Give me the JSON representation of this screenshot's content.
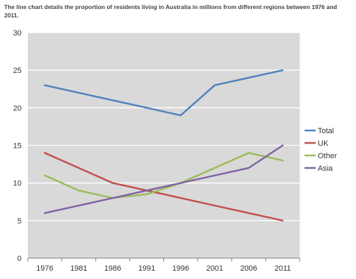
{
  "chart_data": {
    "type": "line",
    "title": "The line chart details the proportion of residents living in Australia in millions from different regions between 1976 and 2011.",
    "xlabel": "",
    "ylabel": "",
    "categories": [
      "1976",
      "1981",
      "1986",
      "1991",
      "1996",
      "2001",
      "2006",
      "2011"
    ],
    "ylim": [
      0,
      30
    ],
    "yticks": [
      0,
      5,
      10,
      15,
      20,
      25,
      30
    ],
    "grid": true,
    "legend": "right",
    "series": [
      {
        "name": "Total",
        "color": "#4f81bd",
        "values": [
          23,
          22,
          21,
          20,
          19,
          23,
          24,
          25
        ]
      },
      {
        "name": "UK",
        "color": "#c0504d",
        "values": [
          14,
          12,
          10,
          9,
          8,
          7,
          6,
          5
        ]
      },
      {
        "name": "Other",
        "color": "#9bbb59",
        "values": [
          11,
          9,
          8,
          8.5,
          10,
          12,
          14,
          13
        ]
      },
      {
        "name": "Asia",
        "color": "#8064a2",
        "values": [
          6,
          7,
          8,
          9,
          10,
          11,
          12,
          15
        ]
      }
    ]
  }
}
